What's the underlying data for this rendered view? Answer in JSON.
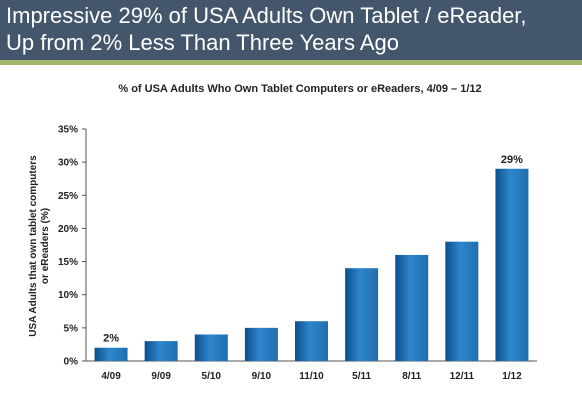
{
  "slide": {
    "title_line1": "Impressive 29% of USA Adults Own Tablet / eReader,",
    "title_line2": "Up from 2% Less Than Three Years Ago"
  },
  "colors": {
    "header_bg": "#44566b",
    "accent": "#a3b86c",
    "bar": "#1f6fb0"
  },
  "chart_data": {
    "type": "bar",
    "title": "% of USA Adults Who Own Tablet Computers or eReaders, 4/09 – 1/12",
    "xlabel": "",
    "ylabel": "USA Adults that own tablet computers or eReaders (%)",
    "ylabel_lines": [
      "USA Adults that own tablet computers",
      "or eReaders (%)"
    ],
    "categories": [
      "4/09",
      "9/09",
      "5/10",
      "9/10",
      "11/10",
      "5/11",
      "8/11",
      "12/11",
      "1/12"
    ],
    "values": [
      2,
      3,
      4,
      5,
      6,
      14,
      16,
      18,
      29
    ],
    "ylim": [
      0,
      35
    ],
    "yticks": [
      0,
      5,
      10,
      15,
      20,
      25,
      30,
      35
    ],
    "ytick_labels": [
      "0%",
      "5%",
      "10%",
      "15%",
      "20%",
      "25%",
      "30%",
      "35%"
    ],
    "data_labels": [
      {
        "index": 0,
        "text": "2%"
      },
      {
        "index": 8,
        "text": "29%"
      }
    ],
    "grid": false,
    "legend": "none"
  }
}
